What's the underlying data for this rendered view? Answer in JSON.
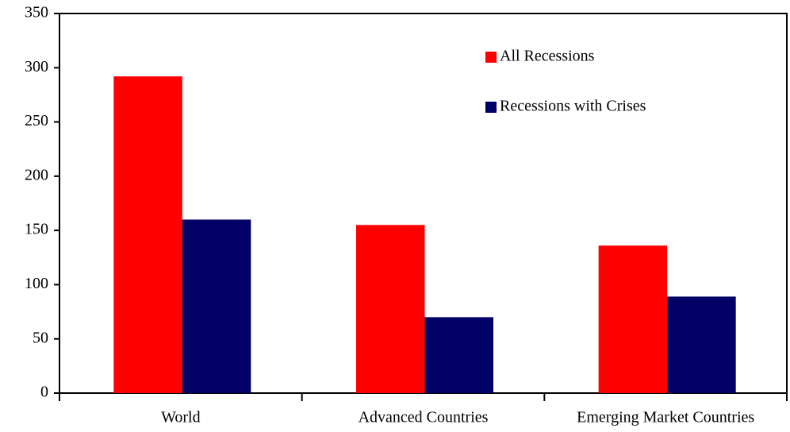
{
  "chart_data": {
    "type": "bar",
    "categories": [
      "World",
      "Advanced Countries",
      "Emerging Market Countries"
    ],
    "series": [
      {
        "name": "All Recessions",
        "color": "#ff0000",
        "values": [
          292,
          155,
          136
        ]
      },
      {
        "name": "Recessions with Crises",
        "color": "#000066",
        "values": [
          160,
          70,
          89
        ]
      }
    ],
    "ylim": [
      0,
      350
    ],
    "yticks": [
      0,
      50,
      100,
      150,
      200,
      250,
      300,
      350
    ],
    "grid": false,
    "legend": "top-right"
  }
}
